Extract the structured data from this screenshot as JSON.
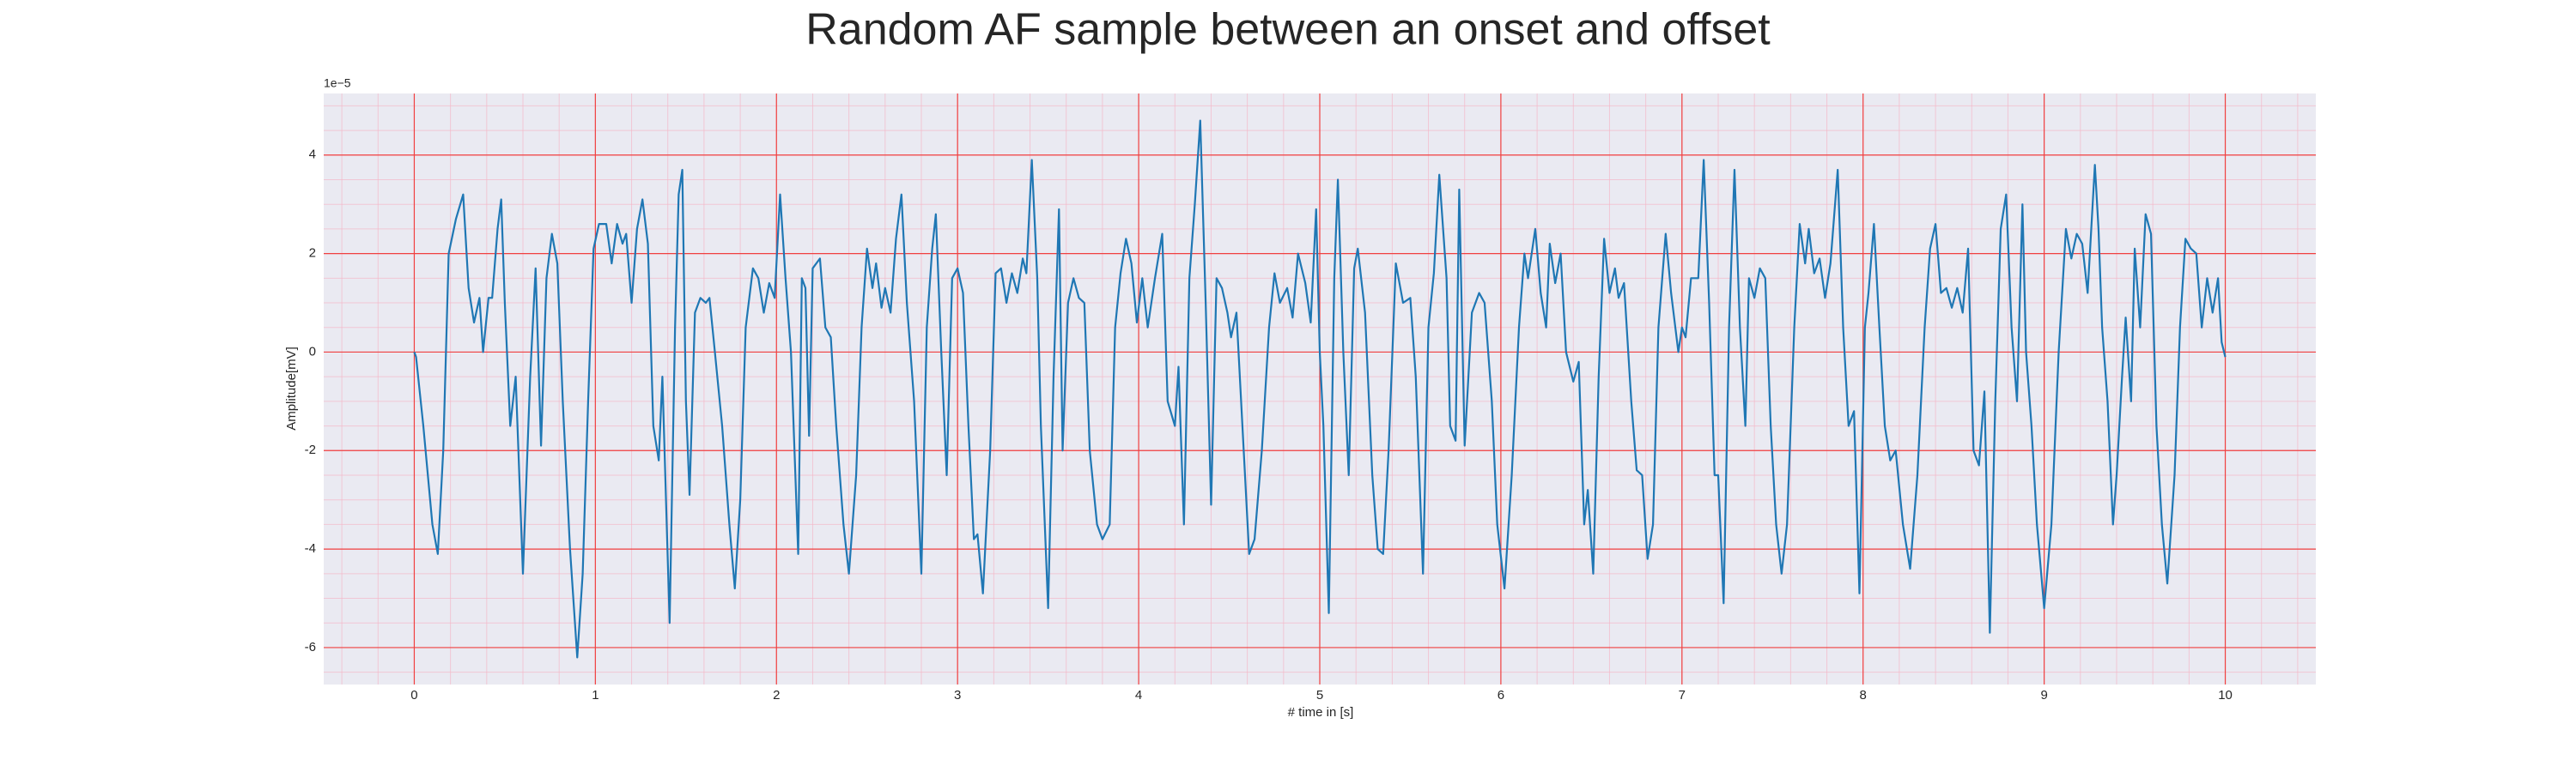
{
  "chart_data": {
    "type": "line",
    "title": "Random AF sample between an onset and offset",
    "xlabel": "# time in [s]",
    "ylabel": "Amplitude[mV]",
    "y_offset_label": "1e−5",
    "color": "#1f77b4",
    "xlim": [
      -0.5,
      10.5
    ],
    "ylim": [
      -6.75,
      5.25
    ],
    "xticks": [
      0,
      1,
      2,
      3,
      4,
      5,
      6,
      7,
      8,
      9,
      10
    ],
    "yticks": [
      -6,
      -4,
      -2,
      0,
      2,
      4
    ],
    "grid": true,
    "minor_grid": true,
    "x": [
      0.0,
      0.01,
      0.05,
      0.1,
      0.13,
      0.16,
      0.19,
      0.23,
      0.27,
      0.3,
      0.33,
      0.36,
      0.38,
      0.41,
      0.43,
      0.46,
      0.48,
      0.5,
      0.53,
      0.56,
      0.6,
      0.64,
      0.67,
      0.7,
      0.73,
      0.76,
      0.79,
      0.82,
      0.86,
      0.9,
      0.93,
      0.96,
      0.99,
      1.02,
      1.06,
      1.09,
      1.12,
      1.15,
      1.17,
      1.2,
      1.23,
      1.26,
      1.29,
      1.32,
      1.35,
      1.37,
      1.41,
      1.44,
      1.46,
      1.48,
      1.5,
      1.52,
      1.55,
      1.58,
      1.61,
      1.63,
      1.66,
      1.7,
      1.74,
      1.77,
      1.8,
      1.83,
      1.87,
      1.9,
      1.93,
      1.96,
      1.99,
      2.02,
      2.05,
      2.08,
      2.12,
      2.14,
      2.16,
      2.18,
      2.2,
      2.24,
      2.27,
      2.3,
      2.33,
      2.37,
      2.4,
      2.44,
      2.47,
      2.5,
      2.53,
      2.55,
      2.58,
      2.6,
      2.63,
      2.66,
      2.69,
      2.72,
      2.76,
      2.8,
      2.83,
      2.86,
      2.88,
      2.91,
      2.94,
      2.97,
      3.0,
      3.03,
      3.06,
      3.09,
      3.11,
      3.14,
      3.18,
      3.21,
      3.24,
      3.27,
      3.3,
      3.33,
      3.36,
      3.38,
      3.41,
      3.44,
      3.46,
      3.5,
      3.53,
      3.56,
      3.58,
      3.61,
      3.64,
      3.67,
      3.7,
      3.73,
      3.77,
      3.8,
      3.84,
      3.87,
      3.9,
      3.93,
      3.96,
      3.99,
      4.02,
      4.05,
      4.09,
      4.13,
      4.16,
      4.2,
      4.22,
      4.25,
      4.28,
      4.31,
      4.34,
      4.37,
      4.4,
      4.43,
      4.46,
      4.49,
      4.51,
      4.54,
      4.58,
      4.61,
      4.64,
      4.68,
      4.72,
      4.75,
      4.78,
      4.82,
      4.85,
      4.88,
      4.92,
      4.95,
      4.98,
      5.0,
      5.02,
      5.05,
      5.08,
      5.1,
      5.13,
      5.16,
      5.19,
      5.21,
      5.25,
      5.29,
      5.32,
      5.35,
      5.38,
      5.42,
      5.46,
      5.5,
      5.53,
      5.57,
      5.6,
      5.63,
      5.66,
      5.7,
      5.72,
      5.75,
      5.77,
      5.8,
      5.84,
      5.88,
      5.91,
      5.95,
      5.98,
      6.02,
      6.06,
      6.1,
      6.13,
      6.15,
      6.19,
      6.22,
      6.25,
      6.27,
      6.3,
      6.33,
      6.36,
      6.4,
      6.43,
      6.46,
      6.48,
      6.51,
      6.54,
      6.57,
      6.6,
      6.63,
      6.65,
      6.68,
      6.72,
      6.75,
      6.78,
      6.81,
      6.84,
      6.87,
      6.91,
      6.94,
      6.98,
      7.0,
      7.02,
      7.05,
      7.09,
      7.12,
      7.15,
      7.18,
      7.2,
      7.23,
      7.26,
      7.29,
      7.32,
      7.35,
      7.37,
      7.4,
      7.43,
      7.46,
      7.49,
      7.52,
      7.55,
      7.58,
      7.62,
      7.65,
      7.68,
      7.7,
      7.73,
      7.76,
      7.79,
      7.82,
      7.86,
      7.89,
      7.92,
      7.95,
      7.98,
      8.01,
      8.03,
      8.06,
      8.09,
      8.12,
      8.15,
      8.18,
      8.22,
      8.26,
      8.3,
      8.34,
      8.37,
      8.4,
      8.43,
      8.46,
      8.49,
      8.52,
      8.55,
      8.58,
      8.61,
      8.64,
      8.67,
      8.7,
      8.73,
      8.76,
      8.79,
      8.82,
      8.85,
      8.88,
      8.9,
      8.93,
      8.96,
      9.0,
      9.04,
      9.08,
      9.12,
      9.15,
      9.18,
      9.21,
      9.24,
      9.28,
      9.3,
      9.32,
      9.35,
      9.38,
      9.4,
      9.43,
      9.45,
      9.48,
      9.5,
      9.53,
      9.56,
      9.59,
      9.62,
      9.65,
      9.68,
      9.72,
      9.75,
      9.78,
      9.81,
      9.84,
      9.87,
      9.9,
      9.93,
      9.96,
      9.98,
      10.0
    ],
    "values": [
      0.0,
      -0.1,
      -1.5,
      -3.5,
      -4.1,
      -2,
      2,
      2.7,
      3.2,
      1.3,
      0.6,
      1.1,
      0,
      1.1,
      1.1,
      2.5,
      3.1,
      1,
      -1.5,
      -0.5,
      -4.5,
      -0.5,
      1.7,
      -1.9,
      1.5,
      2.4,
      1.8,
      -1,
      -4,
      -6.2,
      -4.5,
      -1,
      2.1,
      2.6,
      2.6,
      1.8,
      2.6,
      2.2,
      2.4,
      1,
      2.5,
      3.1,
      2.2,
      -1.5,
      -2.2,
      -0.5,
      -5.5,
      0.5,
      3.2,
      3.7,
      -1,
      -2.9,
      0.8,
      1.1,
      1,
      1.1,
      0,
      -1.5,
      -3.5,
      -4.8,
      -3,
      0.5,
      1.7,
      1.5,
      0.8,
      1.4,
      1.1,
      3.2,
      1.5,
      0,
      -4.1,
      1.5,
      1.3,
      -1.7,
      1.7,
      1.9,
      0.5,
      0.3,
      -1.5,
      -3.5,
      -4.5,
      -2.5,
      0.5,
      2.1,
      1.3,
      1.8,
      0.9,
      1.3,
      0.8,
      2.3,
      3.2,
      1,
      -1,
      -4.5,
      0.5,
      2.1,
      2.8,
      0,
      -2.5,
      1.5,
      1.7,
      1.2,
      -1.5,
      -3.8,
      -3.7,
      -4.9,
      -2,
      1.6,
      1.7,
      1.0,
      1.6,
      1.2,
      1.9,
      1.6,
      3.9,
      1.5,
      -1.5,
      -5.2,
      -0.5,
      2.9,
      -2,
      1.0,
      1.5,
      1.1,
      1.0,
      -2,
      -3.5,
      -3.8,
      -3.5,
      0.5,
      1.6,
      2.3,
      1.8,
      0.6,
      1.5,
      0.5,
      1.5,
      2.4,
      -1,
      -1.5,
      -0.3,
      -3.5,
      1.5,
      3,
      4.7,
      1,
      -3.1,
      1.5,
      1.3,
      0.8,
      0.3,
      0.8,
      -2,
      -4.1,
      -3.8,
      -2,
      0.5,
      1.6,
      1.0,
      1.3,
      0.7,
      2,
      1.4,
      0.6,
      2.9,
      0,
      -1.5,
      -5.3,
      1.5,
      3.5,
      0,
      -2.5,
      1.7,
      2.1,
      0.8,
      -2.5,
      -4,
      -4.1,
      -2,
      1.8,
      1,
      1.1,
      -0.5,
      -4.5,
      0.5,
      1.6,
      3.6,
      1.5,
      -1.5,
      -1.8,
      3.3,
      -1.9,
      0.8,
      1.2,
      1.0,
      -1,
      -3.5,
      -4.8,
      -2.5,
      0.5,
      2,
      1.5,
      2.5,
      1.2,
      0.5,
      2.2,
      1.4,
      2,
      0,
      -0.6,
      -0.2,
      -3.5,
      -2.8,
      -4.5,
      -0.5,
      2.3,
      1.2,
      1.7,
      1.1,
      1.4,
      -1,
      -2.4,
      -2.5,
      -4.2,
      -3.5,
      0.5,
      2.4,
      1.2,
      0,
      0.5,
      0.3,
      1.5,
      1.5,
      3.9,
      1.0,
      -2.5,
      -2.5,
      -5.1,
      0.5,
      3.7,
      0.5,
      -1.5,
      1.5,
      1.1,
      1.7,
      1.5,
      -1.5,
      -3.5,
      -4.5,
      -3.5,
      0.5,
      2.6,
      1.8,
      2.5,
      1.6,
      1.9,
      1.1,
      1.8,
      3.7,
      0.5,
      -1.5,
      -1.2,
      -4.9,
      0.5,
      1.2,
      2.6,
      0.5,
      -1.5,
      -2.2,
      -2,
      -3.5,
      -4.4,
      -2.5,
      0.5,
      2.1,
      2.6,
      1.2,
      1.3,
      0.9,
      1.3,
      0.8,
      2.1,
      -2,
      -2.3,
      -0.8,
      -5.7,
      -1,
      2.5,
      3.2,
      0.5,
      -1,
      3,
      0,
      -1.5,
      -3.5,
      -5.2,
      -3.5,
      0,
      2.5,
      1.9,
      2.4,
      2.2,
      1.2,
      3.8,
      2.5,
      0.5,
      -1,
      -3.5,
      -2.5,
      -0.5,
      0.7,
      -1,
      2.1,
      0.5,
      2.8,
      2.4,
      -1.5,
      -3.5,
      -4.7,
      -2.5,
      0.5,
      2.3,
      2.1,
      2.0,
      0.5,
      1.5,
      0.8,
      1.5,
      0.2,
      -0.1
    ]
  }
}
